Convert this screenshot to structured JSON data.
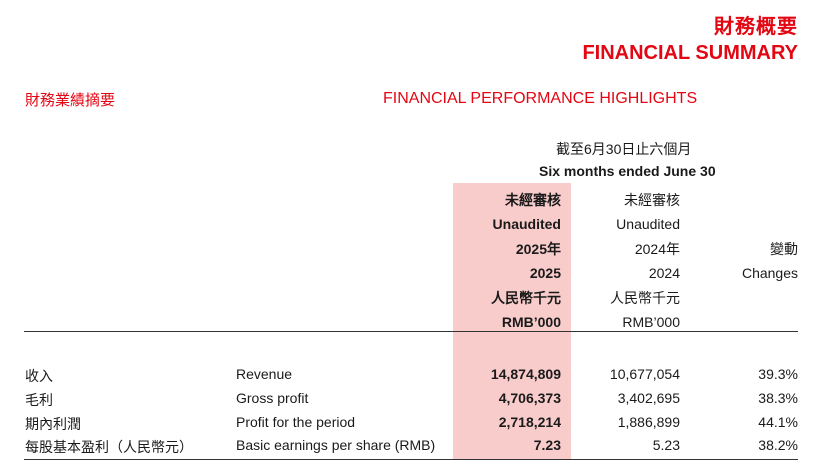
{
  "header": {
    "title_cn": "財務概要",
    "title_en": "FINANCIAL SUMMARY"
  },
  "section": {
    "title_cn": "財務業績摘要",
    "title_en": "FINANCIAL PERFORMANCE HIGHLIGHTS"
  },
  "period": {
    "label_cn": "截至6月30日止六個月",
    "label_en": "Six months ended June 30"
  },
  "columns": {
    "current": {
      "audit_cn": "未經審核",
      "audit_en": "Unaudited",
      "year_cn": "2025年",
      "year_en": "2025",
      "unit_cn": "人民幣千元",
      "unit_en": "RMB’000"
    },
    "prior": {
      "audit_cn": "未經審核",
      "audit_en": "Unaudited",
      "year_cn": "2024年",
      "year_en": "2024",
      "unit_cn": "人民幣千元",
      "unit_en": "RMB’000"
    },
    "change": {
      "label_cn": "變動",
      "label_en": "Changes"
    }
  },
  "rows": [
    {
      "label_cn": "收入",
      "label_en": "Revenue",
      "v2025": "14,874,809",
      "v2024": "10,677,054",
      "change": "39.3%"
    },
    {
      "label_cn": "毛利",
      "label_en": "Gross profit",
      "v2025": "4,706,373",
      "v2024": "3,402,695",
      "change": "38.3%"
    },
    {
      "label_cn": "期內利潤",
      "label_en": "Profit for the period",
      "v2025": "2,718,214",
      "v2024": "1,886,899",
      "change": "44.1%"
    },
    {
      "label_cn": "每股基本盈利（人民幣元）",
      "label_en": "Basic earnings per share (RMB)",
      "v2025": "7.23",
      "v2024": "5.23",
      "change": "38.2%"
    }
  ],
  "colors": {
    "accent": "#e30613",
    "highlight": "#f9cccc"
  }
}
